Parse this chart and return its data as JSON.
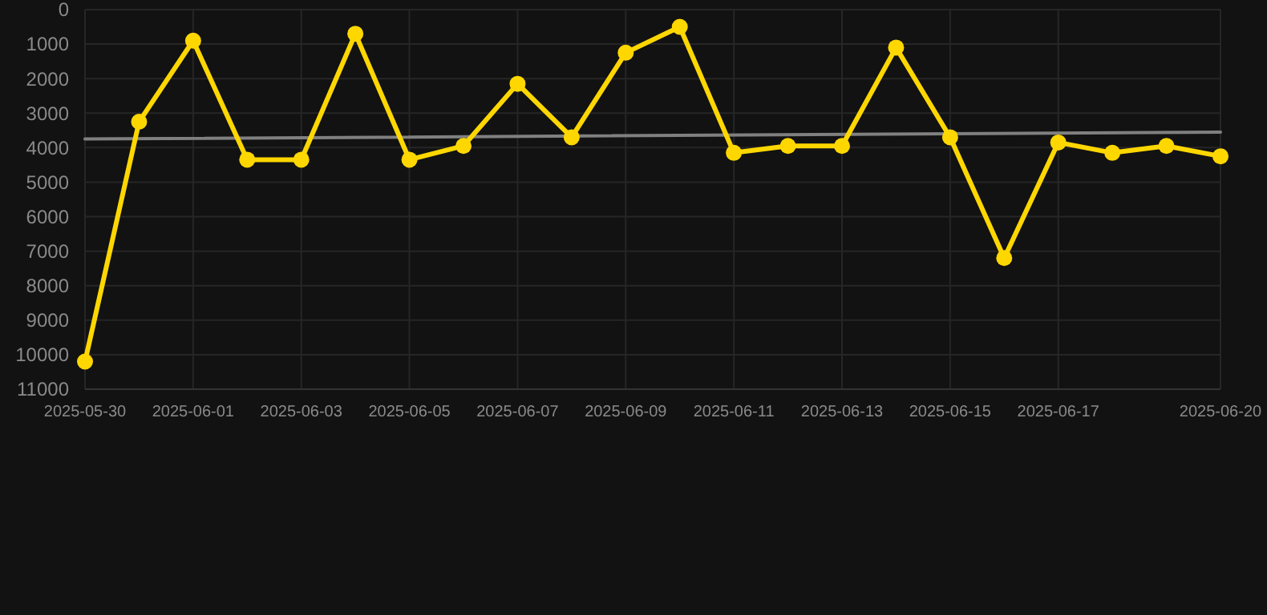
{
  "chart_data": {
    "type": "line",
    "x": [
      "2025-05-30",
      "2025-05-31",
      "2025-06-01",
      "2025-06-02",
      "2025-06-03",
      "2025-06-04",
      "2025-06-05",
      "2025-06-06",
      "2025-06-07",
      "2025-06-08",
      "2025-06-09",
      "2025-06-10",
      "2025-06-11",
      "2025-06-12",
      "2025-06-13",
      "2025-06-14",
      "2025-06-15",
      "2025-06-16",
      "2025-06-17",
      "2025-06-18",
      "2025-06-19",
      "2025-06-20"
    ],
    "series": [
      {
        "color": "#ffd700",
        "marker": "circle",
        "values": [
          10200,
          3250,
          900,
          4350,
          4350,
          700,
          4350,
          3950,
          2150,
          3700,
          1250,
          500,
          4150,
          3950,
          3950,
          1100,
          3700,
          7200,
          3850,
          4150,
          3950,
          4250
        ]
      },
      {
        "type": "line",
        "color": "#808080",
        "marker": "none",
        "x": [
          "2025-05-30",
          "2025-06-20"
        ],
        "values": [
          3750,
          3550
        ]
      }
    ],
    "xlim": [
      "2025-05-30",
      "2025-06-20"
    ],
    "xticks": [
      "2025-05-30",
      "2025-06-01",
      "2025-06-03",
      "2025-06-05",
      "2025-06-07",
      "2025-06-09",
      "2025-06-11",
      "2025-06-13",
      "2025-06-15",
      "2025-06-17",
      "2025-06-20"
    ],
    "ylim": [
      11000,
      0
    ],
    "yticks": [
      0,
      1000,
      2000,
      3000,
      4000,
      5000,
      6000,
      7000,
      8000,
      9000,
      10000,
      11000
    ],
    "grid": true
  }
}
